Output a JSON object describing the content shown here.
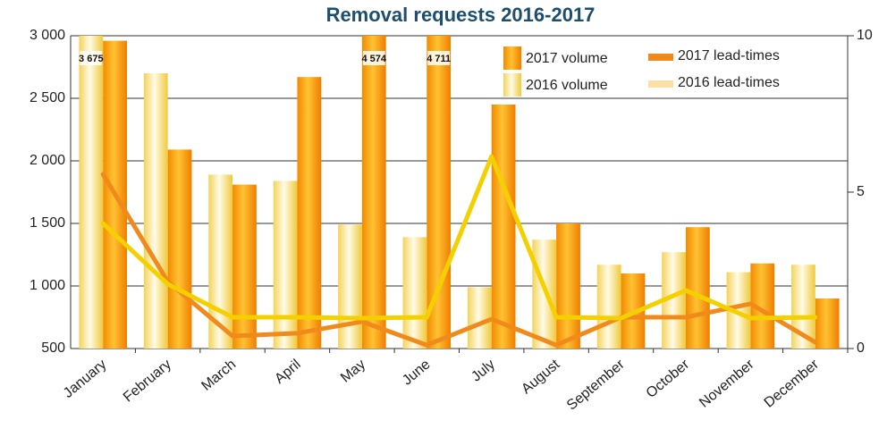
{
  "chart_data": {
    "type": "bar",
    "title": "Removal requests 2016-2017",
    "categories": [
      "January",
      "February",
      "March",
      "April",
      "May",
      "June",
      "July",
      "August",
      "September",
      "October",
      "November",
      "December"
    ],
    "series": [
      {
        "name": "2017 volume",
        "type": "bar",
        "color": "#f59a00",
        "values": [
          2960,
          2090,
          1810,
          2670,
          4574,
          4711,
          2450,
          1500,
          1100,
          1470,
          1180,
          900
        ],
        "value_labels": [
          null,
          null,
          null,
          null,
          "4 574",
          "4 711",
          null,
          null,
          null,
          null,
          null,
          null
        ]
      },
      {
        "name": "2016 volume",
        "type": "bar",
        "color": "#f7dc6a",
        "values": [
          3675,
          2700,
          1890,
          1840,
          1490,
          1390,
          990,
          1370,
          1170,
          1270,
          1110,
          1170
        ],
        "value_labels": [
          "3 675",
          null,
          null,
          null,
          null,
          null,
          null,
          null,
          null,
          null,
          null,
          null
        ]
      },
      {
        "name": "2017 lead-times",
        "type": "line",
        "axis": "y2",
        "color": "#f08a1c",
        "values": [
          5.57,
          2.14,
          0.4,
          0.49,
          0.86,
          0.11,
          0.94,
          0.11,
          1.0,
          1.0,
          1.43,
          0.2
        ]
      },
      {
        "name": "2016 lead-times",
        "type": "line",
        "axis": "y2",
        "color": "#f5d000",
        "values": [
          4.0,
          2.06,
          1.0,
          1.0,
          0.97,
          1.0,
          6.14,
          1.0,
          0.97,
          1.86,
          0.97,
          1.0
        ]
      }
    ],
    "ylim": [
      500,
      3000
    ],
    "yticks": [
      500,
      {
        "value": 1000,
        "label": "1 000"
      },
      {
        "value": 1500,
        "label": "1 500"
      },
      {
        "value": 2000,
        "label": "2 000"
      },
      {
        "value": 2500,
        "label": "2 500"
      },
      {
        "value": 3000,
        "label": "3 000"
      }
    ],
    "y2lim": [
      0,
      10
    ],
    "y2ticks": [
      0,
      5,
      10
    ],
    "grid": true
  }
}
